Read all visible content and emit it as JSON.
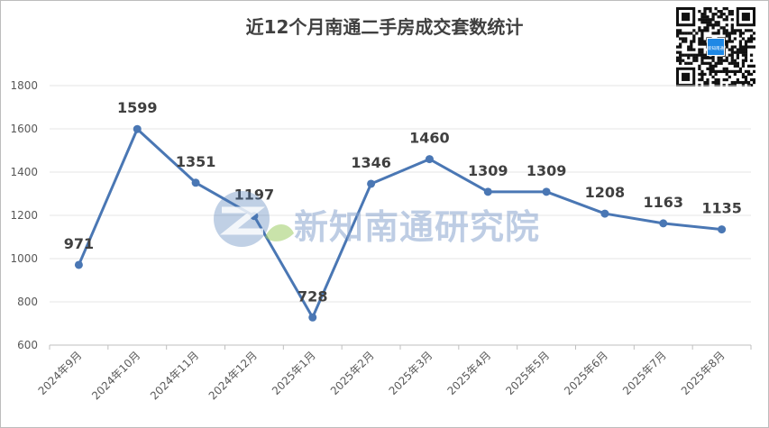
{
  "chart_data": {
    "type": "line",
    "title": "近12个月南通二手房成交套数统计",
    "categories": [
      "2024年9月",
      "2024年10月",
      "2024年11月",
      "2024年12月",
      "2025年1月",
      "2025年2月",
      "2025年3月",
      "2025年4月",
      "2025年5月",
      "2025年6月",
      "2025年7月",
      "2025年8月"
    ],
    "series": [
      {
        "values": [
          971,
          1599,
          1351,
          1197,
          728,
          1346,
          1460,
          1309,
          1309,
          1208,
          1163,
          1135
        ]
      }
    ],
    "yticks": [
      "600",
      "800",
      "1000",
      "1200",
      "1400",
      "1600",
      "1800"
    ],
    "ylim": [
      600,
      1800
    ],
    "grid": true,
    "line_color": "#4a77b4"
  },
  "watermark": {
    "text": "新知南通研究院",
    "logo_color": "#4a77b4",
    "leaf_color": "#9ccc65"
  },
  "qr": {
    "center_text": "新知南通",
    "center_color": "#1e88e5"
  }
}
